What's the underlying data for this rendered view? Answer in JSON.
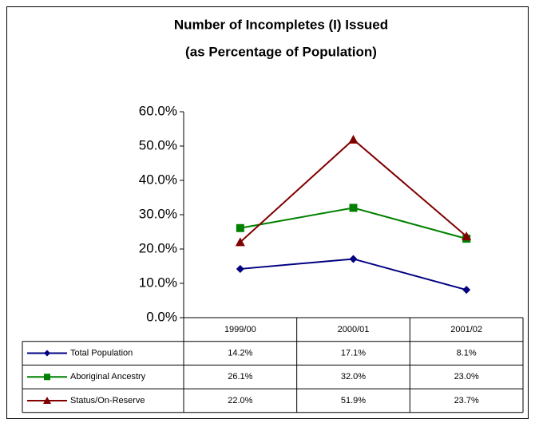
{
  "chart_data": {
    "type": "line",
    "title": "Number of Incompletes (I) Issued",
    "subtitle": "(as Percentage of Population)",
    "categories": [
      "1999/00",
      "2000/01",
      "2001/02"
    ],
    "series": [
      {
        "name": "Total Population",
        "color": "#000080",
        "marker": "diamond",
        "values": [
          14.2,
          17.1,
          8.1
        ],
        "value_labels": [
          "14.2%",
          "17.1%",
          "8.1%"
        ]
      },
      {
        "name": "Aboriginal Ancestry",
        "color": "#008000",
        "marker": "square",
        "values": [
          26.1,
          32.0,
          23.0
        ],
        "value_labels": [
          "26.1%",
          "32.0%",
          "23.0%"
        ]
      },
      {
        "name": "Status/On-Reserve",
        "color": "#800000",
        "marker": "triangle",
        "values": [
          22.0,
          51.9,
          23.7
        ],
        "value_labels": [
          "22.0%",
          "51.9%",
          "23.7%"
        ]
      }
    ],
    "ylim": [
      0,
      60
    ],
    "yticks": [
      {
        "value": 0,
        "label": "0.0%"
      },
      {
        "value": 10,
        "label": "10.0%"
      },
      {
        "value": 20,
        "label": "20.0%"
      },
      {
        "value": 30,
        "label": "30.0%"
      },
      {
        "value": 40,
        "label": "40.0%"
      },
      {
        "value": 50,
        "label": "50.0%"
      },
      {
        "value": 60,
        "label": "60.0%"
      }
    ],
    "grid": false
  }
}
